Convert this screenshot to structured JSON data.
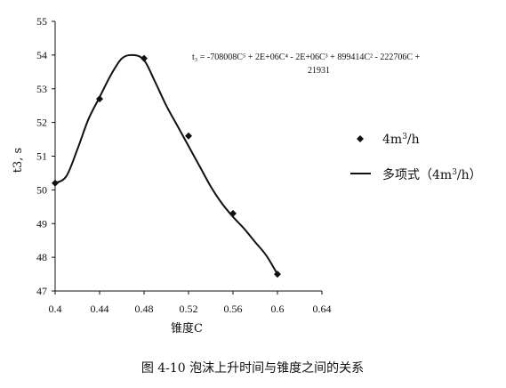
{
  "chart_data": {
    "type": "scatter",
    "xlabel": "锥度C",
    "ylabel": "t3, s",
    "xlim": [
      0.4,
      0.64
    ],
    "ylim": [
      47,
      55
    ],
    "xticks": [
      "0.4",
      "0.44",
      "0.48",
      "0.52",
      "0.56",
      "0.6",
      "0.64"
    ],
    "yticks": [
      "47",
      "48",
      "49",
      "50",
      "51",
      "52",
      "53",
      "54",
      "55"
    ],
    "series": [
      {
        "name": "4m³/h",
        "x": [
          0.4,
          0.44,
          0.48,
          0.52,
          0.56,
          0.6
        ],
        "y": [
          50.2,
          52.7,
          53.9,
          51.6,
          49.3,
          47.5
        ]
      },
      {
        "name": "多项式（4m³/h）",
        "style": "line",
        "x": [
          0.4,
          0.41,
          0.42,
          0.43,
          0.44,
          0.45,
          0.46,
          0.47,
          0.48,
          0.49,
          0.5,
          0.51,
          0.52,
          0.53,
          0.54,
          0.55,
          0.56,
          0.57,
          0.58,
          0.59,
          0.6
        ],
        "y": [
          50.2,
          50.4,
          51.2,
          52.1,
          52.75,
          53.4,
          53.9,
          54.0,
          53.85,
          53.2,
          52.5,
          51.9,
          51.3,
          50.7,
          50.1,
          49.6,
          49.2,
          48.85,
          48.45,
          48.05,
          47.5
        ]
      }
    ],
    "equation": {
      "line1": "t₃ = -708008C⁵ + 2E+06C⁴ - 2E+06C³ + 899414C² - 222706C +",
      "line2": "21931"
    },
    "legend": {
      "placement": "right",
      "marker_label_base": "4m",
      "marker_label_sup": "3",
      "marker_label_tail": "/h",
      "line_label_base": "多项式（4m",
      "line_label_sup": "3",
      "line_label_tail": "/h）"
    },
    "caption": "图 4-10 泡沫上升时间与锥度之间的关系",
    "colors": {
      "ink": "#111111",
      "background": "#ffffff"
    }
  }
}
